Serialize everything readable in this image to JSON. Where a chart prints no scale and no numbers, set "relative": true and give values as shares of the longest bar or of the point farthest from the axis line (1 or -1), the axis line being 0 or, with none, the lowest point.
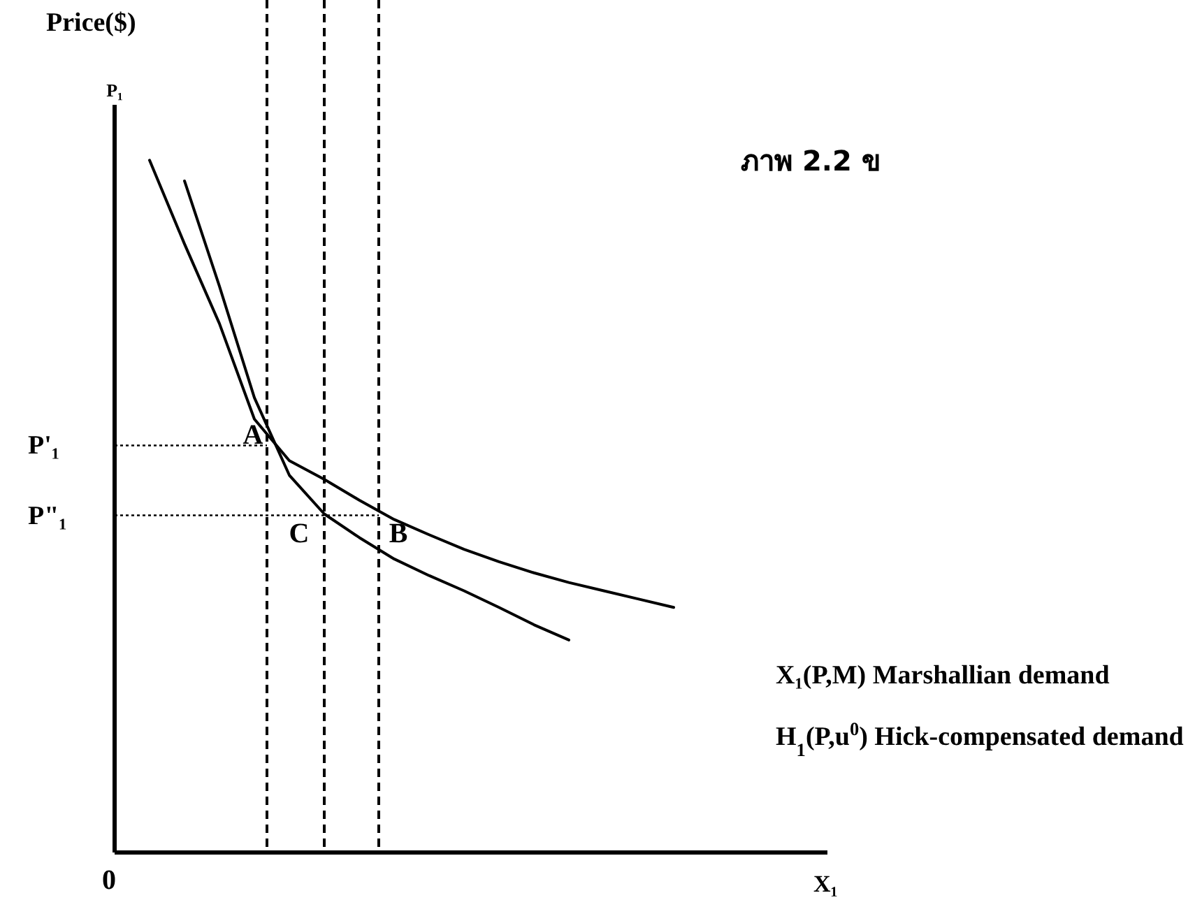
{
  "chart_data": {
    "type": "line",
    "relative": true,
    "title": "ภาพ 2.2 ข",
    "ylabel": "Price($)",
    "xlabel": "X₁",
    "categories": [
      null,
      null,
      null,
      null,
      null,
      null,
      null,
      null,
      null,
      null,
      null,
      null,
      null,
      null,
      null,
      null,
      null,
      null,
      null,
      null,
      null
    ],
    "series": [
      {
        "name": "X₁(P,M) Marshallian demand",
        "color": "#000000",
        "values": [
          null,
          1,
          0.879,
          0.764,
          0.626,
          0.566,
          0.539,
          0.509,
          0.481,
          0.459,
          0.438,
          0.42,
          0.404,
          0.39,
          0.378,
          0.366,
          0.354,
          null,
          null,
          null,
          null
        ]
      },
      {
        "name": "H$_{1}$(P,u$^{0}$) Hick-compensated demand",
        "color": "#000000",
        "values": [
          null,
          null,
          0.97,
          0.818,
          0.657,
          0.545,
          0.489,
          0.455,
          0.424,
          0.4,
          0.378,
          0.354,
          0.329,
          0.307,
          null,
          null,
          null,
          null,
          null,
          null,
          null
        ]
      }
    ],
    "ref_lines": [
      {
        "axis": "y",
        "value": 0.588,
        "label": "P'₁",
        "line_style": "dotted"
      },
      {
        "axis": "y",
        "value": 0.487,
        "label": "P\"₁",
        "line_style": "dotted"
      }
    ],
    "annotations": [
      "P₁",
      "0",
      "A",
      "C",
      "B"
    ],
    "line_style": "solid",
    "marker": "none",
    "legend": false,
    "grid": false
  }
}
